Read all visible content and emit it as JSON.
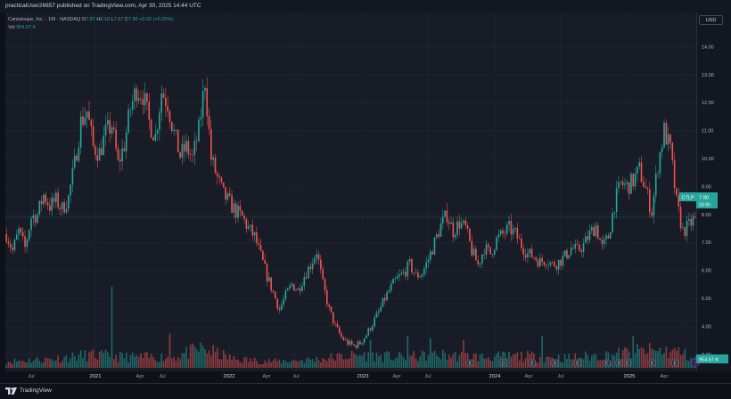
{
  "header": {
    "publish_text": "practicalUser26657 published on TradingView.com, Apr 30, 2025 14:44 UTC"
  },
  "legend": {
    "title": "Cantaloupe, Inc. · 1W · NASDAQ",
    "o_label": "O",
    "o_value": "7.87",
    "h_label": "H",
    "h_value": "8.18",
    "l_label": "L",
    "l_value": "7.57",
    "c_label": "C",
    "c_value": "7.90",
    "change": "+0.02 (+0.25%)",
    "vol_label": "Vol",
    "vol_value": "954.67 K"
  },
  "price_axis": {
    "currency": "USD",
    "ticks": [
      "14.00",
      "13.00",
      "12.00",
      "11.00",
      "10.00",
      "9.00",
      "8.00",
      "7.00",
      "6.00",
      "5.00",
      "4.00",
      "3.00"
    ],
    "last_price_symbol": "CTLP",
    "last_price_value": "7.90",
    "last_price_countdown": "2d 6h",
    "volume_badge": "954.67 K"
  },
  "time_axis": {
    "labels": [
      "Jul",
      "2021",
      "Apr",
      "Jul",
      "2022",
      "Apr",
      "Jul",
      "2023",
      "Apr",
      "Jul",
      "2024",
      "Apr",
      "Jul",
      "2025",
      "Apr"
    ]
  },
  "events": {
    "earnings_letter": "E",
    "dividend_letter": "D"
  },
  "colors": {
    "up": "#26a69a",
    "down": "#ef5350",
    "background": "#181c27",
    "earnings": "#9c27b0"
  },
  "brand": {
    "name": "TradingView",
    "logo_icon": "tradingview-logo-icon"
  },
  "chart_data": {
    "type": "candlestick",
    "symbol": "CTLP",
    "interval": "1W",
    "ylim": [
      2.8,
      14.2
    ],
    "axis_ticks": [
      3,
      4,
      5,
      6,
      7,
      8,
      9,
      10,
      11,
      12,
      13,
      14
    ],
    "x_labels": [
      "Jul",
      "2021",
      "Apr",
      "Jul",
      "2022",
      "Apr",
      "Jul",
      "2023",
      "Apr",
      "Jul",
      "2024",
      "Apr",
      "Jul",
      "2025",
      "Apr"
    ],
    "last_close": 7.9,
    "price_path": [
      [
        0,
        7.3
      ],
      [
        3,
        6.7
      ],
      [
        6,
        7.4
      ],
      [
        9,
        6.8
      ],
      [
        12,
        7.9
      ],
      [
        15,
        8.0
      ],
      [
        18,
        8.7
      ],
      [
        21,
        8.3
      ],
      [
        24,
        8.5
      ],
      [
        27,
        8.2
      ],
      [
        30,
        8.6
      ],
      [
        33,
        9.8
      ],
      [
        36,
        11.3
      ],
      [
        39,
        11.7
      ],
      [
        42,
        10.4
      ],
      [
        45,
        10.2
      ],
      [
        48,
        10.9
      ],
      [
        51,
        11.2
      ],
      [
        54,
        9.8
      ],
      [
        57,
        10.5
      ],
      [
        60,
        11.8
      ],
      [
        63,
        12.5
      ],
      [
        66,
        12.3
      ],
      [
        69,
        11.3
      ],
      [
        72,
        10.8
      ],
      [
        75,
        12.4
      ],
      [
        78,
        12.0
      ],
      [
        81,
        10.9
      ],
      [
        84,
        10.1
      ],
      [
        87,
        10.4
      ],
      [
        90,
        10.0
      ],
      [
        93,
        11.0
      ],
      [
        96,
        12.8
      ],
      [
        99,
        10.0
      ],
      [
        102,
        9.3
      ],
      [
        105,
        8.7
      ],
      [
        108,
        8.4
      ],
      [
        111,
        8.1
      ],
      [
        114,
        7.9
      ],
      [
        117,
        7.5
      ],
      [
        120,
        7.2
      ],
      [
        123,
        6.5
      ],
      [
        126,
        5.8
      ],
      [
        129,
        5.2
      ],
      [
        132,
        4.6
      ],
      [
        135,
        5.1
      ],
      [
        138,
        5.5
      ],
      [
        141,
        5.3
      ],
      [
        144,
        5.8
      ],
      [
        147,
        6.2
      ],
      [
        150,
        6.7
      ],
      [
        153,
        5.5
      ],
      [
        156,
        4.6
      ],
      [
        159,
        4.0
      ],
      [
        162,
        3.6
      ],
      [
        165,
        3.4
      ],
      [
        168,
        3.3
      ],
      [
        171,
        3.4
      ],
      [
        174,
        3.7
      ],
      [
        177,
        4.1
      ],
      [
        180,
        4.5
      ],
      [
        183,
        5.0
      ],
      [
        186,
        5.4
      ],
      [
        189,
        5.7
      ],
      [
        192,
        5.9
      ],
      [
        195,
        6.2
      ],
      [
        198,
        5.8
      ],
      [
        201,
        5.9
      ],
      [
        204,
        6.4
      ],
      [
        207,
        7.0
      ],
      [
        210,
        7.6
      ],
      [
        213,
        8.0
      ],
      [
        216,
        7.4
      ],
      [
        219,
        7.7
      ],
      [
        222,
        7.5
      ],
      [
        225,
        6.7
      ],
      [
        228,
        6.2
      ],
      [
        231,
        6.8
      ],
      [
        234,
        6.6
      ],
      [
        237,
        7.1
      ],
      [
        240,
        7.3
      ],
      [
        243,
        7.5
      ],
      [
        246,
        7.3
      ],
      [
        249,
        6.9
      ],
      [
        252,
        6.6
      ],
      [
        255,
        6.5
      ],
      [
        258,
        6.3
      ],
      [
        261,
        6.4
      ],
      [
        264,
        6.2
      ],
      [
        267,
        6.3
      ],
      [
        270,
        6.5
      ],
      [
        273,
        6.8
      ],
      [
        276,
        6.7
      ],
      [
        279,
        6.9
      ],
      [
        282,
        7.3
      ],
      [
        285,
        7.6
      ],
      [
        288,
        6.8
      ],
      [
        291,
        7.2
      ],
      [
        294,
        8.4
      ],
      [
        297,
        9.1
      ],
      [
        300,
        9.0
      ],
      [
        303,
        9.2
      ],
      [
        306,
        9.6
      ],
      [
        309,
        8.9
      ],
      [
        312,
        8.1
      ],
      [
        315,
        9.8
      ],
      [
        318,
        11.0
      ],
      [
        321,
        10.3
      ],
      [
        324,
        8.4
      ],
      [
        327,
        7.4
      ],
      [
        330,
        7.6
      ],
      [
        333,
        7.9
      ]
    ],
    "volume_profile": [
      [
        0,
        0.3
      ],
      [
        20,
        0.4
      ],
      [
        40,
        0.6
      ],
      [
        60,
        0.5
      ],
      [
        80,
        0.5
      ],
      [
        95,
        0.9
      ],
      [
        110,
        0.4
      ],
      [
        130,
        0.3
      ],
      [
        150,
        0.4
      ],
      [
        170,
        0.6
      ],
      [
        190,
        0.5
      ],
      [
        210,
        0.6
      ],
      [
        230,
        0.5
      ],
      [
        250,
        0.55
      ],
      [
        270,
        0.45
      ],
      [
        290,
        0.6
      ],
      [
        310,
        0.8
      ],
      [
        325,
        0.75
      ],
      [
        333,
        0.4
      ]
    ],
    "volume_spikes": [
      [
        51,
        3.8
      ],
      [
        79,
        1.6
      ],
      [
        176,
        1.3
      ],
      [
        194,
        1.5
      ],
      [
        205,
        1.4
      ],
      [
        221,
        1.3
      ],
      [
        259,
        1.5
      ],
      [
        303,
        1.5
      ]
    ],
    "earnings_weeks": [
      224,
      240,
      254,
      265,
      276,
      290,
      300,
      312,
      323,
      333
    ],
    "dividend_weeks": [
      240,
      265,
      296
    ]
  }
}
